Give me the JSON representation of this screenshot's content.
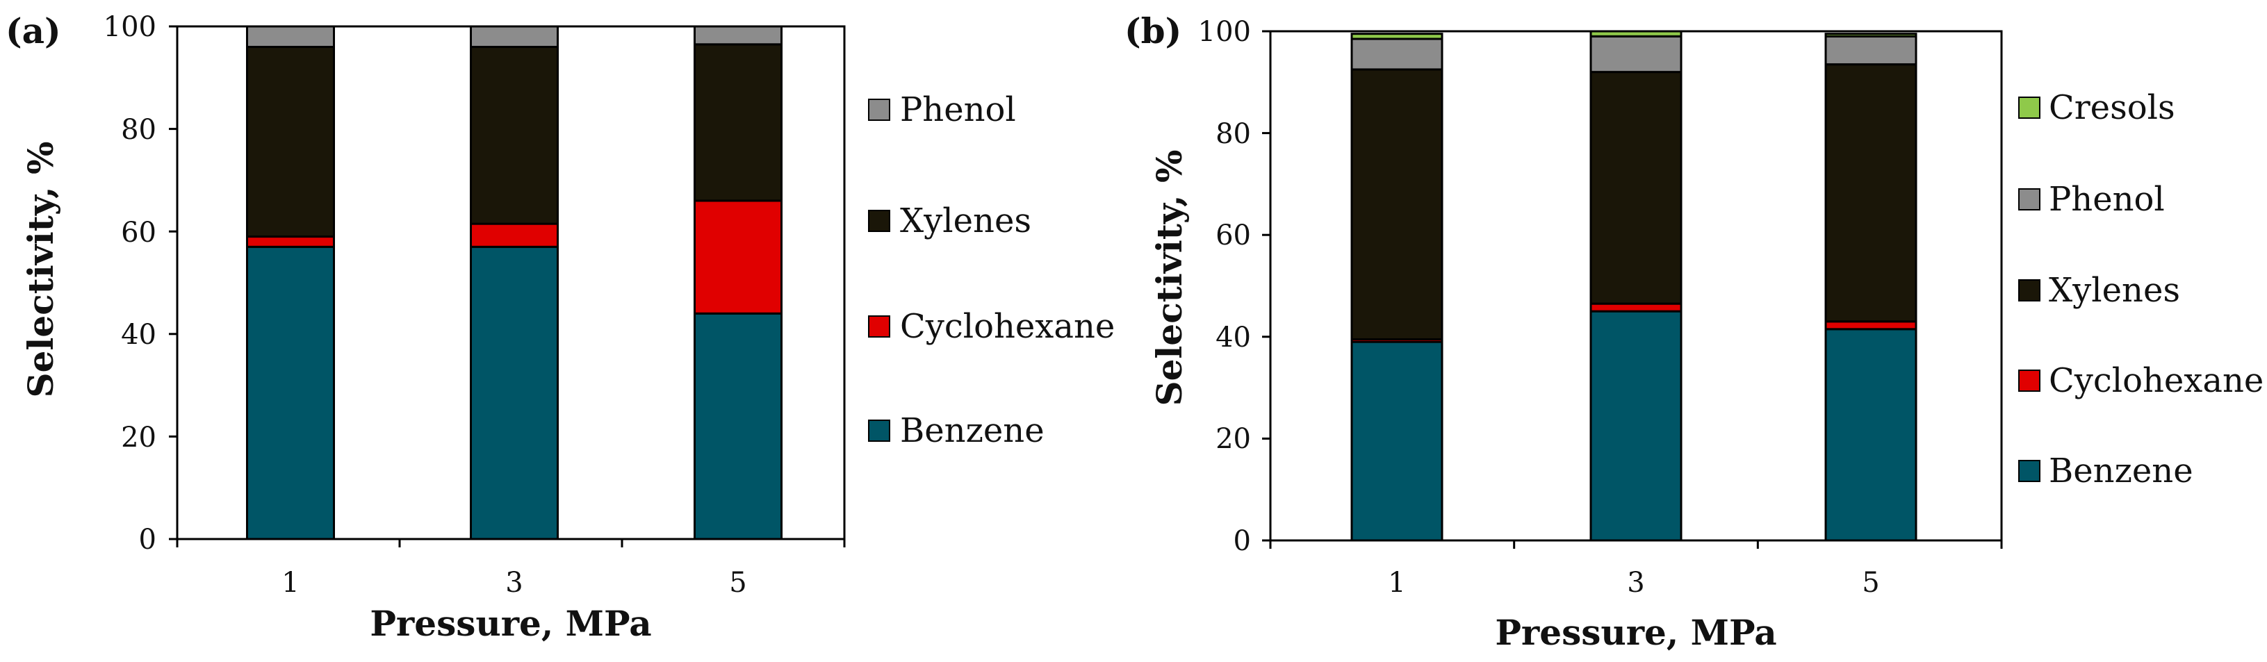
{
  "chart_data": [
    {
      "type": "bar",
      "stacked": true,
      "panel_label": "(a)",
      "categories": [
        "1",
        "3",
        "5"
      ],
      "xlabel": "Pressure, MPa",
      "ylabel": "Selectivity, %",
      "ylim": [
        0,
        100
      ],
      "yticks": [
        "0",
        "20",
        "40",
        "60",
        "80",
        "100"
      ],
      "series": [
        {
          "name": "Benzene",
          "color": "#005566",
          "values": [
            57,
            57,
            44
          ]
        },
        {
          "name": "Cyclohexane",
          "color": "#e00000",
          "values": [
            2,
            4.5,
            22
          ]
        },
        {
          "name": "Xylenes",
          "color": "#1a1608",
          "values": [
            37,
            34.5,
            30.5
          ]
        },
        {
          "name": "Phenol",
          "color": "#8c8c8c",
          "values": [
            4,
            4,
            3.5
          ]
        }
      ],
      "legend": [
        "Phenol",
        "Xylenes",
        "Cyclohexane",
        "Benzene"
      ]
    },
    {
      "type": "bar",
      "stacked": true,
      "panel_label": "(b)",
      "categories": [
        "1",
        "3",
        "5"
      ],
      "xlabel": "Pressure, MPa",
      "ylabel": "Selectivity, %",
      "ylim": [
        0,
        100
      ],
      "yticks": [
        "0",
        "20",
        "40",
        "60",
        "80",
        "100"
      ],
      "series": [
        {
          "name": "Benzene",
          "color": "#005566",
          "values": [
            39,
            45,
            41.5
          ]
        },
        {
          "name": "Cyclohexane",
          "color": "#e00000",
          "values": [
            0.5,
            1.5,
            1.5
          ]
        },
        {
          "name": "Xylenes",
          "color": "#1a1608",
          "values": [
            53,
            45.5,
            50.5
          ]
        },
        {
          "name": "Phenol",
          "color": "#8c8c8c",
          "values": [
            6,
            7,
            5.5
          ]
        },
        {
          "name": "Cresols",
          "color": "#8fc94a",
          "values": [
            1,
            1,
            0.5
          ]
        }
      ],
      "legend": [
        "Cresols",
        "Phenol",
        "Xylenes",
        "Cyclohexane",
        "Benzene"
      ]
    }
  ]
}
